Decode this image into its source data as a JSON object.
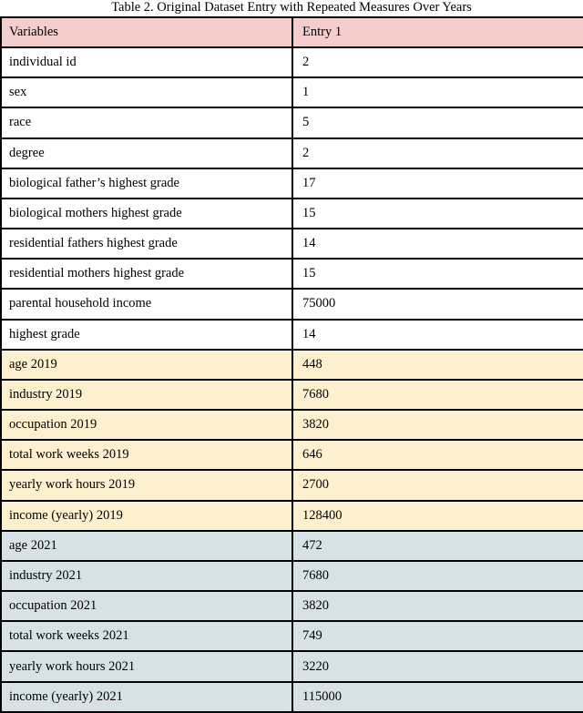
{
  "caption": "Table 2. Original Dataset Entry with Repeated Measures Over Years",
  "table": {
    "columns": [
      "Variables",
      "Entry 1"
    ],
    "rows": [
      {
        "label": "individual id",
        "value": "2",
        "group": "base"
      },
      {
        "label": "sex",
        "value": "1",
        "group": "base"
      },
      {
        "label": "race",
        "value": "5",
        "group": "base"
      },
      {
        "label": "degree",
        "value": "2",
        "group": "base"
      },
      {
        "label": "biological father’s highest grade",
        "value": "17",
        "group": "base"
      },
      {
        "label": "biological mothers highest grade",
        "value": "15",
        "group": "base"
      },
      {
        "label": "residential fathers highest grade",
        "value": "14",
        "group": "base"
      },
      {
        "label": "residential mothers highest grade",
        "value": "15",
        "group": "base"
      },
      {
        "label": "parental household income",
        "value": "75000",
        "group": "base"
      },
      {
        "label": "highest grade",
        "value": "14",
        "group": "base"
      },
      {
        "label": "age 2019",
        "value": "448",
        "group": "y2019"
      },
      {
        "label": "industry 2019",
        "value": "7680",
        "group": "y2019"
      },
      {
        "label": "occupation 2019",
        "value": "3820",
        "group": "y2019"
      },
      {
        "label": "total work weeks 2019",
        "value": "646",
        "group": "y2019"
      },
      {
        "label": "yearly work hours 2019",
        "value": "2700",
        "group": "y2019"
      },
      {
        "label": "income (yearly) 2019",
        "value": "128400",
        "group": "y2019"
      },
      {
        "label": "age 2021",
        "value": "472",
        "group": "y2021"
      },
      {
        "label": "industry 2021",
        "value": "7680",
        "group": "y2021"
      },
      {
        "label": "occupation 2021",
        "value": "3820",
        "group": "y2021"
      },
      {
        "label": "total work weeks 2021",
        "value": "749",
        "group": "y2021"
      },
      {
        "label": "yearly work hours 2021",
        "value": "3220",
        "group": "y2021"
      },
      {
        "label": "income (yearly) 2021",
        "value": "115000",
        "group": "y2021"
      }
    ]
  },
  "colors": {
    "header_bg": "#f5cdcd",
    "base_bg": "#ffffff",
    "y2019_bg": "#fcf0ce",
    "y2021_bg": "#d6e2e5",
    "border": "#000000"
  }
}
